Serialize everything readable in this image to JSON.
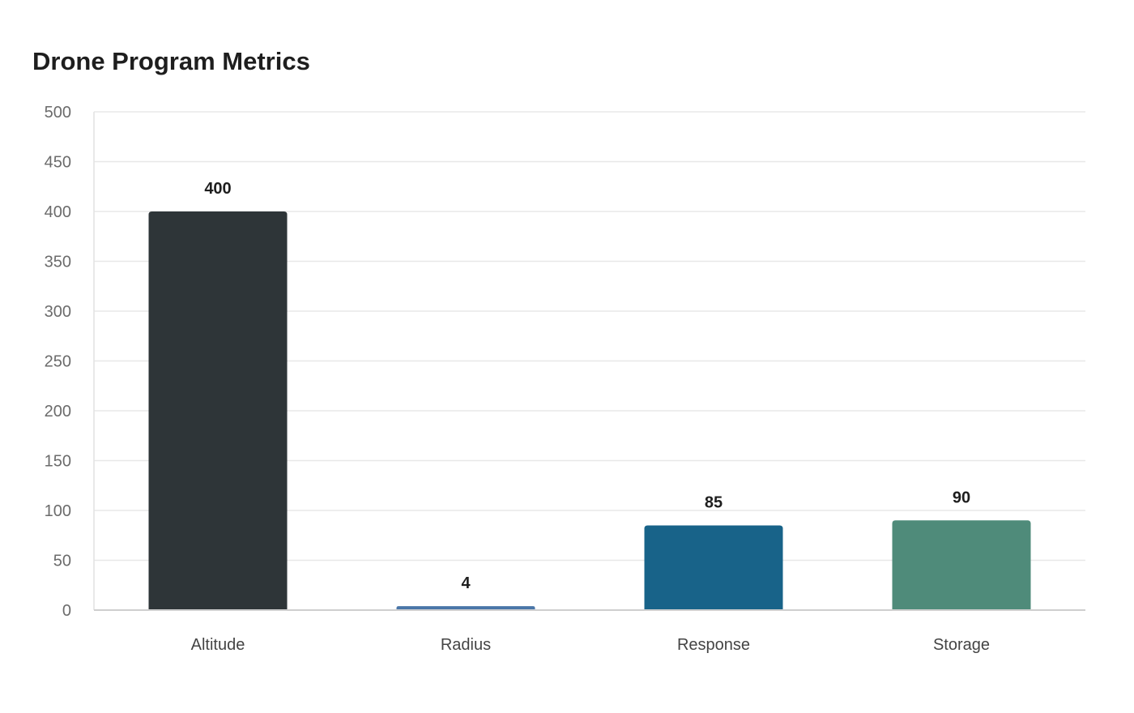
{
  "chart_data": {
    "type": "bar",
    "title": "Drone Program Metrics",
    "xlabel": "",
    "ylabel": "",
    "categories": [
      "Altitude",
      "Radius",
      "Response",
      "Storage"
    ],
    "values": [
      400,
      4,
      85,
      90
    ],
    "data_labels": [
      "400",
      "4",
      "85",
      "90"
    ],
    "colors": [
      "#2e3538",
      "#4a76a8",
      "#186389",
      "#4f8b7a"
    ],
    "ylim": [
      0,
      500
    ],
    "yticks": [
      0,
      50,
      100,
      150,
      200,
      250,
      300,
      350,
      400,
      450,
      500
    ],
    "grid": true,
    "legend": "none"
  }
}
